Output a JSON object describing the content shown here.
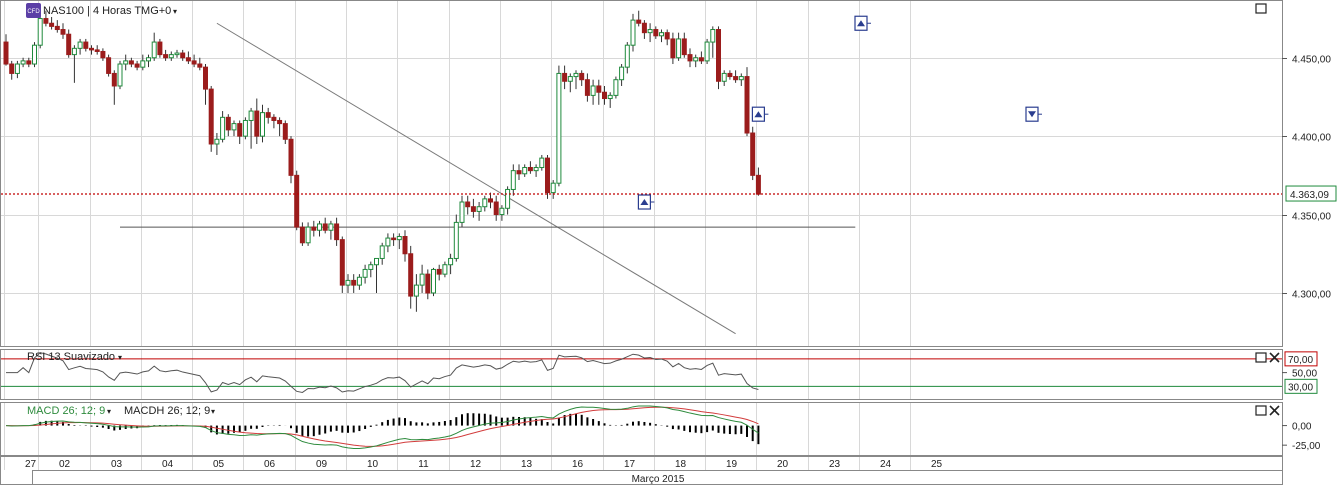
{
  "header": {
    "symbol_title": "NAS100 | 4 Horas TMG+0",
    "cfd_badge": "CFD"
  },
  "colors": {
    "bull": "#1f8a3c",
    "bear": "#9b1c1c",
    "price_line": "#c00000",
    "rsi_line": "#555555",
    "rsi_upper": "#c00000",
    "rsi_lower": "#1f8a3c",
    "macd_line": "#2e8b3d",
    "signal_line": "#d23c3c",
    "grid": "#d8d8d8"
  },
  "chart_data": [
    {
      "type": "candlestick",
      "name": "main-price",
      "ylim": [
        4270,
        4483
      ],
      "y_ticks": [
        4300,
        4350,
        4400,
        4450
      ],
      "y_tick_labels": [
        "4.300,00",
        "4.350,00",
        "4.400,00",
        "4.450,00"
      ],
      "current_price": 4363.09,
      "current_price_label": "4.363,09",
      "trendline": {
        "from": {
          "bar": 37,
          "price": 4472
        },
        "to": {
          "bar": 128,
          "price": 4274
        }
      },
      "support_line": {
        "from_bar": 20,
        "to_bar": 149,
        "price": 4342
      },
      "signals": [
        {
          "bar": 112,
          "price": 4358,
          "dir": "buy"
        },
        {
          "bar": 132,
          "price": 4414,
          "dir": "buy"
        },
        {
          "bar": 150,
          "price": 4472,
          "dir": "buy"
        },
        {
          "bar": 180,
          "price": 4414,
          "dir": "sell"
        }
      ],
      "candles": [
        [
          4460,
          4465,
          4445,
          4446
        ],
        [
          4446,
          4448,
          4436,
          4440
        ],
        [
          4440,
          4448,
          4437,
          4446
        ],
        [
          4446,
          4450,
          4444,
          4448
        ],
        [
          4448,
          4450,
          4444,
          4446
        ],
        [
          4446,
          4460,
          4444,
          4458
        ],
        [
          4458,
          4478,
          4456,
          4475
        ],
        [
          4475,
          4480,
          4470,
          4472
        ],
        [
          4472,
          4476,
          4468,
          4470
        ],
        [
          4470,
          4474,
          4466,
          4468
        ],
        [
          4468,
          4472,
          4462,
          4465
        ],
        [
          4465,
          4468,
          4450,
          4452
        ],
        [
          4452,
          4458,
          4434,
          4456
        ],
        [
          4456,
          4462,
          4452,
          4460
        ],
        [
          4460,
          4462,
          4454,
          4456
        ],
        [
          4456,
          4458,
          4452,
          4455
        ],
        [
          4455,
          4458,
          4452,
          4454
        ],
        [
          4454,
          4456,
          4448,
          4450
        ],
        [
          4450,
          4452,
          4438,
          4440
        ],
        [
          4440,
          4442,
          4420,
          4432
        ],
        [
          4432,
          4448,
          4430,
          4446
        ],
        [
          4446,
          4452,
          4442,
          4448
        ],
        [
          4448,
          4450,
          4444,
          4446
        ],
        [
          4446,
          4448,
          4442,
          4444
        ],
        [
          4444,
          4452,
          4442,
          4448
        ],
        [
          4448,
          4452,
          4444,
          4450
        ],
        [
          4450,
          4466,
          4448,
          4460
        ],
        [
          4460,
          4462,
          4450,
          4452
        ],
        [
          4452,
          4455,
          4448,
          4450
        ],
        [
          4450,
          4454,
          4448,
          4452
        ],
        [
          4452,
          4455,
          4450,
          4453
        ],
        [
          4453,
          4455,
          4448,
          4450
        ],
        [
          4450,
          4454,
          4446,
          4448
        ],
        [
          4448,
          4452,
          4444,
          4446
        ],
        [
          4446,
          4450,
          4442,
          4444
        ],
        [
          4444,
          4446,
          4420,
          4430
        ],
        [
          4430,
          4432,
          4390,
          4395
        ],
        [
          4395,
          4402,
          4388,
          4398
        ],
        [
          4398,
          4416,
          4396,
          4412
        ],
        [
          4412,
          4414,
          4400,
          4404
        ],
        [
          4404,
          4410,
          4400,
          4408
        ],
        [
          4408,
          4410,
          4395,
          4400
        ],
        [
          4400,
          4412,
          4398,
          4410
        ],
        [
          4410,
          4418,
          4392,
          4416
        ],
        [
          4416,
          4424,
          4395,
          4400
        ],
        [
          4400,
          4420,
          4396,
          4415
        ],
        [
          4415,
          4418,
          4408,
          4412
        ],
        [
          4412,
          4414,
          4405,
          4410
        ],
        [
          4410,
          4412,
          4400,
          4408
        ],
        [
          4408,
          4410,
          4395,
          4398
        ],
        [
          4398,
          4400,
          4370,
          4375
        ],
        [
          4375,
          4378,
          4340,
          4342
        ],
        [
          4342,
          4345,
          4330,
          4332
        ],
        [
          4332,
          4345,
          4330,
          4342
        ],
        [
          4342,
          4346,
          4336,
          4340
        ],
        [
          4340,
          4346,
          4336,
          4344
        ],
        [
          4344,
          4348,
          4338,
          4340
        ],
        [
          4340,
          4346,
          4334,
          4344
        ],
        [
          4344,
          4348,
          4330,
          4334
        ],
        [
          4334,
          4336,
          4300,
          4305
        ],
        [
          4305,
          4312,
          4300,
          4308
        ],
        [
          4308,
          4312,
          4300,
          4305
        ],
        [
          4305,
          4312,
          4302,
          4310
        ],
        [
          4310,
          4318,
          4306,
          4315
        ],
        [
          4315,
          4320,
          4310,
          4318
        ],
        [
          4318,
          4322,
          4300,
          4322
        ],
        [
          4322,
          4332,
          4318,
          4330
        ],
        [
          4330,
          4338,
          4326,
          4335
        ],
        [
          4335,
          4338,
          4330,
          4334
        ],
        [
          4334,
          4338,
          4328,
          4336
        ],
        [
          4336,
          4340,
          4320,
          4325
        ],
        [
          4325,
          4330,
          4290,
          4298
        ],
        [
          4298,
          4312,
          4288,
          4305
        ],
        [
          4305,
          4318,
          4300,
          4312
        ],
        [
          4312,
          4315,
          4296,
          4300
        ],
        [
          4300,
          4316,
          4298,
          4315
        ],
        [
          4315,
          4318,
          4308,
          4312
        ],
        [
          4312,
          4320,
          4310,
          4318
        ],
        [
          4318,
          4325,
          4312,
          4322
        ],
        [
          4322,
          4350,
          4320,
          4345
        ],
        [
          4345,
          4362,
          4342,
          4358
        ],
        [
          4358,
          4362,
          4350,
          4355
        ],
        [
          4355,
          4360,
          4348,
          4352
        ],
        [
          4352,
          4358,
          4346,
          4355
        ],
        [
          4355,
          4362,
          4352,
          4360
        ],
        [
          4360,
          4364,
          4354,
          4358
        ],
        [
          4358,
          4362,
          4346,
          4350
        ],
        [
          4350,
          4356,
          4346,
          4354
        ],
        [
          4354,
          4368,
          4350,
          4366
        ],
        [
          4366,
          4382,
          4362,
          4378
        ],
        [
          4378,
          4382,
          4372,
          4376
        ],
        [
          4376,
          4382,
          4374,
          4380
        ],
        [
          4380,
          4384,
          4376,
          4378
        ],
        [
          4378,
          4382,
          4374,
          4380
        ],
        [
          4380,
          4388,
          4378,
          4386
        ],
        [
          4386,
          4388,
          4360,
          4364
        ],
        [
          4364,
          4372,
          4360,
          4370
        ],
        [
          4370,
          4445,
          4368,
          4440
        ],
        [
          4440,
          4445,
          4430,
          4435
        ],
        [
          4435,
          4440,
          4428,
          4438
        ],
        [
          4438,
          4442,
          4430,
          4440
        ],
        [
          4440,
          4442,
          4432,
          4436
        ],
        [
          4436,
          4440,
          4422,
          4426
        ],
        [
          4426,
          4436,
          4420,
          4432
        ],
        [
          4432,
          4436,
          4420,
          4428
        ],
        [
          4428,
          4432,
          4420,
          4424
        ],
        [
          4424,
          4428,
          4418,
          4426
        ],
        [
          4426,
          4438,
          4424,
          4436
        ],
        [
          4436,
          4446,
          4432,
          4444
        ],
        [
          4444,
          4460,
          4440,
          4458
        ],
        [
          4458,
          4478,
          4454,
          4474
        ],
        [
          4474,
          4480,
          4470,
          4472
        ],
        [
          4472,
          4474,
          4462,
          4466
        ],
        [
          4466,
          4472,
          4460,
          4468
        ],
        [
          4468,
          4470,
          4462,
          4464
        ],
        [
          4464,
          4468,
          4460,
          4466
        ],
        [
          4466,
          4468,
          4458,
          4462
        ],
        [
          4462,
          4466,
          4446,
          4450
        ],
        [
          4450,
          4466,
          4448,
          4462
        ],
        [
          4462,
          4466,
          4450,
          4452
        ],
        [
          4452,
          4456,
          4444,
          4448
        ],
        [
          4448,
          4452,
          4444,
          4450
        ],
        [
          4450,
          4454,
          4446,
          4448
        ],
        [
          4448,
          4462,
          4446,
          4460
        ],
        [
          4460,
          4470,
          4450,
          4468
        ],
        [
          4468,
          4470,
          4430,
          4435
        ],
        [
          4435,
          4442,
          4432,
          4440
        ],
        [
          4440,
          4442,
          4436,
          4438
        ],
        [
          4438,
          4442,
          4434,
          4436
        ],
        [
          4436,
          4440,
          4432,
          4438
        ],
        [
          4438,
          4444,
          4400,
          4402
        ],
        [
          4402,
          4406,
          4372,
          4375
        ],
        [
          4375,
          4380,
          4362,
          4363
        ]
      ]
    },
    {
      "type": "line",
      "name": "rsi",
      "title": "RSI 13 Suavizado",
      "ylim": [
        13,
        80
      ],
      "levels": [
        {
          "value": 70,
          "label": "70,00"
        },
        {
          "value": 30,
          "label": "30,00"
        }
      ],
      "y_ticks": [
        {
          "value": 50,
          "label": "50,00"
        }
      ]
    },
    {
      "type": "line+histogram",
      "name": "macd",
      "title_macd": "MACD 26; 12; 9",
      "title_macdh": "MACDH 26; 12; 9",
      "ylim": [
        -35,
        25
      ],
      "y_ticks": [
        {
          "value": 0,
          "label": "0,00"
        },
        {
          "value": -25,
          "label": "-25,00"
        }
      ]
    },
    {
      "type": "axis",
      "name": "time-axis",
      "month_label": "Março 2015",
      "days": [
        {
          "label": "27",
          "bar": 0
        },
        {
          "label": "02",
          "bar": 6
        },
        {
          "label": "03",
          "bar": 15
        },
        {
          "label": "04",
          "bar": 24
        },
        {
          "label": "05",
          "bar": 33
        },
        {
          "label": "06",
          "bar": 42
        },
        {
          "label": "09",
          "bar": 51
        },
        {
          "label": "10",
          "bar": 60
        },
        {
          "label": "11",
          "bar": 69
        },
        {
          "label": "12",
          "bar": 78
        },
        {
          "label": "13",
          "bar": 87
        },
        {
          "label": "16",
          "bar": 96
        },
        {
          "label": "17",
          "bar": 105
        },
        {
          "label": "18",
          "bar": 114
        },
        {
          "label": "19",
          "bar": 123
        },
        {
          "label": "20",
          "bar": 132
        },
        {
          "label": "23",
          "bar": 141
        },
        {
          "label": "24",
          "bar": 150
        },
        {
          "label": "25",
          "bar": 159
        }
      ]
    }
  ]
}
